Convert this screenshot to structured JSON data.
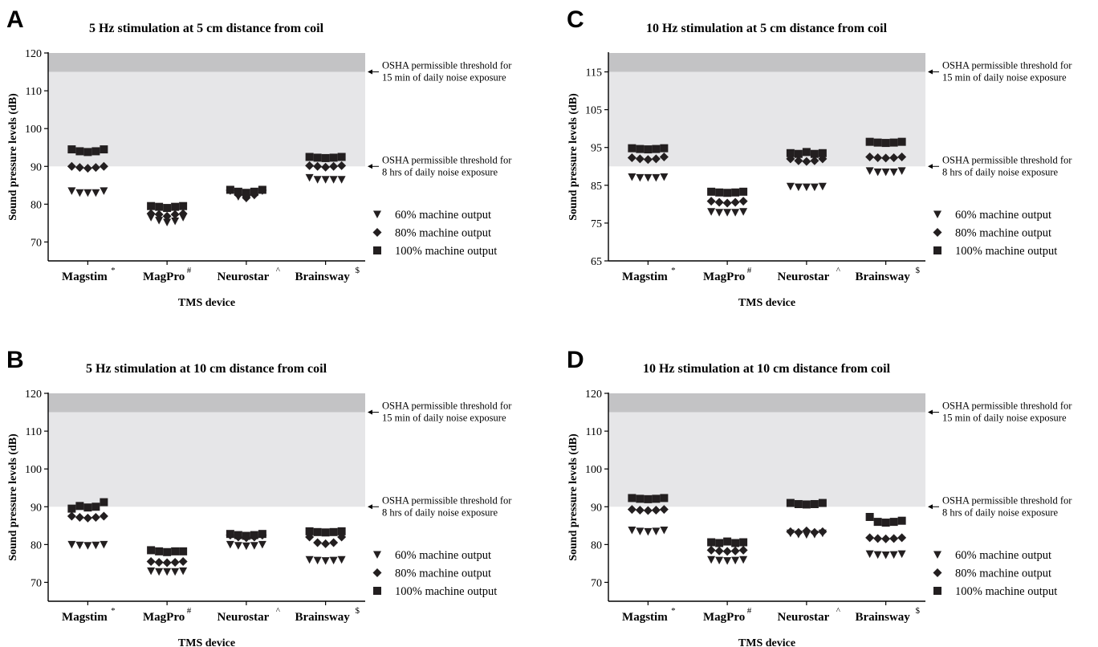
{
  "colors": {
    "zone_light": "#e6e6e8",
    "zone_dark": "#c3c3c5",
    "marker": "#231f20",
    "axis": "#000000"
  },
  "chart_data": [
    {
      "letter": "A",
      "type": "scatter",
      "title": "5 Hz stimulation at 5 cm distance from coil",
      "ylabel": "Sound pressure levels (dB)",
      "xlabel": "TMS device",
      "ylim": [
        65,
        120
      ],
      "yticks": [
        70,
        80,
        90,
        100,
        110,
        120
      ],
      "thresholds": [
        {
          "value": 115,
          "label": [
            "OSHA permissible threshold for",
            "15 min of daily noise exposure"
          ]
        },
        {
          "value": 90,
          "label": [
            "OSHA permissible threshold for",
            "8 hrs of daily noise exposure"
          ]
        }
      ],
      "categories": [
        {
          "name": "Magstim",
          "sup": "*"
        },
        {
          "name": "MagPro",
          "sup": "#"
        },
        {
          "name": "Neurostar",
          "sup": "^"
        },
        {
          "name": "Brainsway",
          "sup": "$"
        }
      ],
      "series": [
        {
          "name": "60% machine output",
          "marker": "triangle",
          "values": [
            [
              83.5,
              83,
              83,
              83,
              83.5
            ],
            [
              76.5,
              75.7,
              75.2,
              75.5,
              76.5
            ],
            [
              83.5,
              82,
              81.5,
              82.3,
              83.5
            ],
            [
              87,
              86.5,
              86.5,
              86.5,
              86.5
            ]
          ]
        },
        {
          "name": "80% machine output",
          "marker": "diamond",
          "values": [
            [
              90,
              89.7,
              89.5,
              89.7,
              90
            ],
            [
              77.5,
              77.3,
              76.8,
              77.3,
              77.5
            ],
            [
              83.7,
              82.5,
              81.7,
              82.5,
              83.7
            ],
            [
              90.2,
              90,
              89.8,
              90,
              90.2
            ]
          ]
        },
        {
          "name": "100% machine output",
          "marker": "square",
          "values": [
            [
              94.5,
              94,
              93.8,
              94,
              94.5
            ],
            [
              79.5,
              79.3,
              79,
              79.3,
              79.5
            ],
            [
              83.8,
              83.3,
              83,
              83.3,
              83.8
            ],
            [
              92.5,
              92.3,
              92.2,
              92.3,
              92.5
            ]
          ]
        }
      ]
    },
    {
      "letter": "B",
      "type": "scatter",
      "title": "5 Hz stimulation at 10 cm distance from coil",
      "ylabel": "Sound pressure levels (dB)",
      "xlabel": "TMS device",
      "ylim": [
        65,
        120
      ],
      "yticks": [
        70,
        80,
        90,
        100,
        110,
        120
      ],
      "thresholds": [
        {
          "value": 115,
          "label": [
            "OSHA permissible threshold for",
            "15 min of daily noise exposure"
          ]
        },
        {
          "value": 90,
          "label": [
            "OSHA permissible threshold for",
            "8 hrs of daily noise exposure"
          ]
        }
      ],
      "categories": [
        {
          "name": "Magstim",
          "sup": "*"
        },
        {
          "name": "MagPro",
          "sup": "#"
        },
        {
          "name": "Neurostar",
          "sup": "^"
        },
        {
          "name": "Brainsway",
          "sup": "$"
        }
      ],
      "series": [
        {
          "name": "60% machine output",
          "marker": "triangle",
          "values": [
            [
              80,
              79.8,
              79.7,
              79.8,
              80
            ],
            [
              73,
              72.8,
              72.8,
              72.8,
              73
            ],
            [
              80,
              79.7,
              79.6,
              79.7,
              80
            ],
            [
              76,
              75.8,
              75.7,
              75.8,
              76
            ]
          ]
        },
        {
          "name": "80% machine output",
          "marker": "diamond",
          "values": [
            [
              87.5,
              87.2,
              87,
              87.2,
              87.5
            ],
            [
              75.5,
              75.3,
              75.2,
              75.3,
              75.5
            ],
            [
              82.5,
              82,
              81.8,
              82,
              82.5
            ],
            [
              82,
              80.5,
              80.2,
              80.5,
              82
            ]
          ]
        },
        {
          "name": "100% machine output",
          "marker": "square",
          "values": [
            [
              89.5,
              90.2,
              89.8,
              90,
              91.2
            ],
            [
              78.5,
              78.2,
              78,
              78.2,
              78.2
            ],
            [
              82.8,
              82.5,
              82.3,
              82.5,
              82.8
            ],
            [
              83.5,
              83.3,
              83.2,
              83.3,
              83.5
            ]
          ]
        }
      ]
    },
    {
      "letter": "C",
      "type": "scatter",
      "title": "10 Hz stimulation at 5 cm distance from coil",
      "ylabel": "Sound pressure levels (dB)",
      "xlabel": "TMS device",
      "ylim": [
        65,
        120
      ],
      "yticks": [
        65,
        75,
        85,
        95,
        105,
        115
      ],
      "thresholds": [
        {
          "value": 115,
          "label": [
            "OSHA permissible threshold for",
            "15 min of daily noise exposure"
          ]
        },
        {
          "value": 90,
          "label": [
            "OSHA permissible threshold for",
            "8 hrs of daily noise exposure"
          ]
        }
      ],
      "categories": [
        {
          "name": "Magstim",
          "sup": "*"
        },
        {
          "name": "MagPro",
          "sup": "#"
        },
        {
          "name": "Neurostar",
          "sup": "^"
        },
        {
          "name": "Brainsway",
          "sup": "$"
        }
      ],
      "series": [
        {
          "name": "60% machine output",
          "marker": "triangle",
          "values": [
            [
              87.2,
              87,
              87,
              87,
              87.2
            ],
            [
              78,
              77.8,
              77.8,
              77.8,
              78
            ],
            [
              84.7,
              84.5,
              84.5,
              84.5,
              84.7
            ],
            [
              88.8,
              88.5,
              88.5,
              88.5,
              88.8
            ]
          ]
        },
        {
          "name": "80% machine output",
          "marker": "diamond",
          "values": [
            [
              92.3,
              92,
              91.8,
              92,
              92.5
            ],
            [
              80.8,
              80.5,
              80.3,
              80.5,
              80.8
            ],
            [
              92,
              91.5,
              91.3,
              91.5,
              92
            ],
            [
              92.5,
              92.3,
              92.2,
              92.3,
              92.5
            ]
          ]
        },
        {
          "name": "100% machine output",
          "marker": "square",
          "values": [
            [
              94.8,
              94.6,
              94.5,
              94.6,
              94.8
            ],
            [
              83.3,
              83.1,
              83,
              83.1,
              83.3
            ],
            [
              93.5,
              93.3,
              93.8,
              93.3,
              93.5
            ],
            [
              96.5,
              96.3,
              96.2,
              96.3,
              96.5
            ]
          ]
        }
      ]
    },
    {
      "letter": "D",
      "type": "scatter",
      "title": "10 Hz stimulation at 10 cm distance from coil",
      "ylabel": "Sound pressure levels (dB)",
      "xlabel": "TMS device",
      "ylim": [
        65,
        120
      ],
      "yticks": [
        70,
        80,
        90,
        100,
        110,
        120
      ],
      "thresholds": [
        {
          "value": 115,
          "label": [
            "OSHA permissible threshold for",
            "15 min of daily noise exposure"
          ]
        },
        {
          "value": 90,
          "label": [
            "OSHA permissible threshold for",
            "8 hrs of daily noise exposure"
          ]
        }
      ],
      "categories": [
        {
          "name": "Magstim",
          "sup": "*"
        },
        {
          "name": "MagPro",
          "sup": "#"
        },
        {
          "name": "Neurostar",
          "sup": "^"
        },
        {
          "name": "Brainsway",
          "sup": "$"
        }
      ],
      "series": [
        {
          "name": "60% machine output",
          "marker": "triangle",
          "values": [
            [
              83.8,
              83.5,
              83.4,
              83.5,
              83.8
            ],
            [
              76,
              75.8,
              75.7,
              75.8,
              76
            ],
            [
              83,
              82.7,
              82.6,
              82.7,
              83
            ],
            [
              77.5,
              77.3,
              77.2,
              77.3,
              77.5
            ]
          ]
        },
        {
          "name": "80% machine output",
          "marker": "diamond",
          "values": [
            [
              89.3,
              89.1,
              89,
              89.1,
              89.3
            ],
            [
              78.5,
              78.3,
              78.2,
              78.3,
              78.5
            ],
            [
              83.4,
              83.2,
              83.6,
              83.2,
              83.4
            ],
            [
              81.8,
              81.6,
              81.5,
              81.6,
              81.8
            ]
          ]
        },
        {
          "name": "100% machine output",
          "marker": "square",
          "values": [
            [
              92.3,
              92.1,
              92,
              92.1,
              92.3
            ],
            [
              80.6,
              80.4,
              80.8,
              80.4,
              80.6
            ],
            [
              91,
              90.7,
              90.6,
              90.7,
              91
            ],
            [
              87.3,
              86,
              85.8,
              86,
              86.3
            ]
          ]
        }
      ]
    }
  ]
}
